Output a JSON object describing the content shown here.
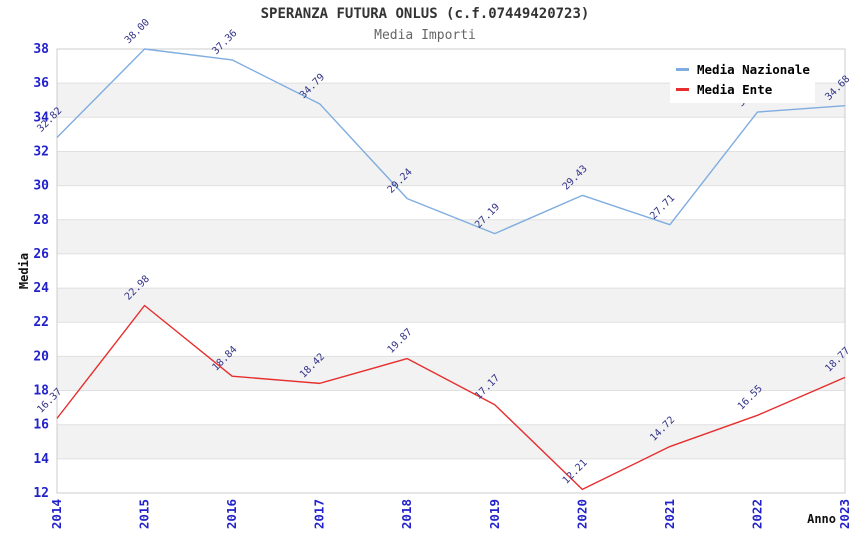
{
  "header": {
    "title": "SPERANZA FUTURA ONLUS (c.f.07449420723)",
    "subtitle": "Media Importi"
  },
  "chart_data": {
    "type": "line",
    "x": [
      "2014",
      "2015",
      "2016",
      "2017",
      "2018",
      "2019",
      "2020",
      "2021",
      "2022",
      "2023"
    ],
    "series": [
      {
        "name": "Media Nazionale",
        "color": "#7fadE0",
        "values": [
          32.82,
          38.0,
          37.36,
          34.79,
          29.24,
          27.19,
          29.43,
          27.71,
          34.31,
          34.68
        ]
      },
      {
        "name": "Media Ente",
        "color": "#e62e2e",
        "values": [
          16.37,
          22.98,
          18.84,
          18.42,
          19.87,
          17.17,
          12.21,
          14.72,
          16.55,
          18.77
        ]
      }
    ],
    "xlabel": "Anno",
    "ylabel": "Media",
    "ylim": [
      12,
      38
    ],
    "ytick_step": 2,
    "grid": true,
    "legend_position": "top-right",
    "data_label_format": "0.00"
  },
  "styles": {
    "tick_label_color": "#2222cc",
    "data_label_color": "#333388",
    "band_color": "#f2f2f2",
    "gridline_color": "#e0e0e0",
    "plot_border_color": "#cccccc",
    "axis_title_color": "#111111"
  }
}
